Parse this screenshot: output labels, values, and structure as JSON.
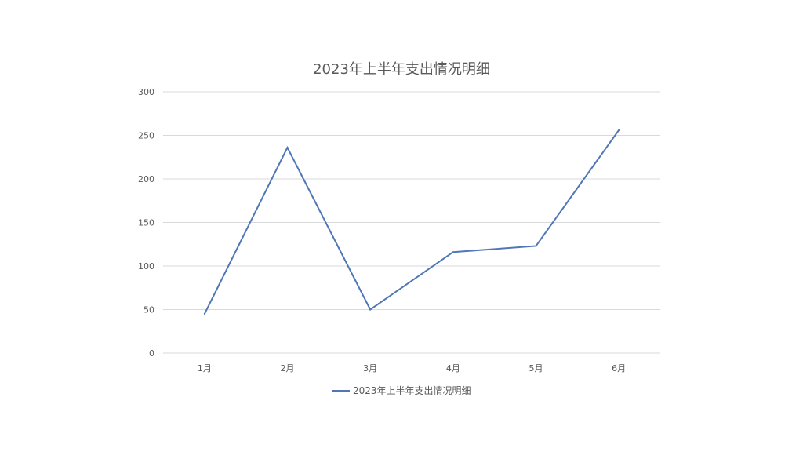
{
  "chart_data": {
    "type": "line",
    "title": "2023年上半年支出情况明细",
    "categories": [
      "1月",
      "2月",
      "3月",
      "4月",
      "5月",
      "6月"
    ],
    "series": [
      {
        "name": "2023年上半年支出情况明细",
        "values": [
          45,
          236,
          50,
          116,
          123,
          256
        ],
        "color": "#4f76b6"
      }
    ],
    "ylim": [
      0,
      300
    ],
    "yticks": [
      "0",
      "50",
      "100",
      "150",
      "200",
      "250",
      "300"
    ],
    "grid": true,
    "legend_position": "bottom",
    "xlabel": "",
    "ylabel": ""
  }
}
